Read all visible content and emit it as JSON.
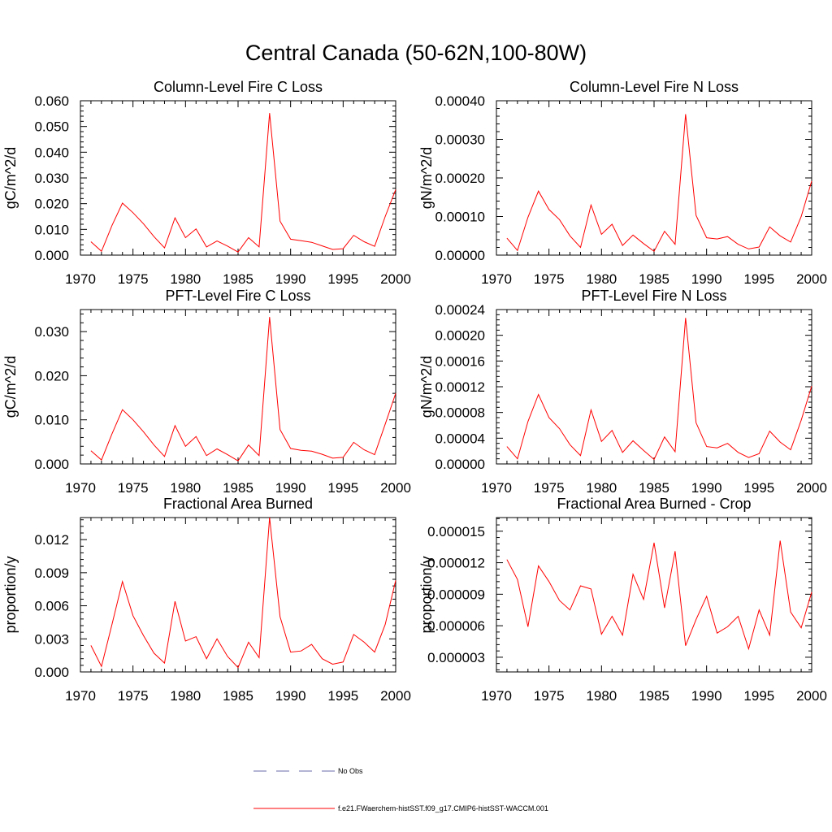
{
  "title": "Central Canada (50-62N,100-80W)",
  "legend": {
    "entries": [
      {
        "label": "No Obs",
        "color": "#6a6aa8",
        "dash": true
      },
      {
        "label": "f.e21.FWaerchem-histSST.f09_g17.CMIP6-histSST-WACCM.001",
        "color": "#ff0000",
        "dash": false
      }
    ]
  },
  "chart_data": [
    {
      "type": "line",
      "title": "Column-Level Fire C Loss",
      "ylabel": "gC/m^2/d",
      "xlim": [
        1970,
        2000
      ],
      "ylim": [
        0,
        0.06
      ],
      "xticks": [
        "1970",
        "1975",
        "1980",
        "1985",
        "1990",
        "1995",
        "2000"
      ],
      "yticks": [
        "0.000",
        "0.010",
        "0.020",
        "0.030",
        "0.040",
        "0.050",
        "0.060"
      ],
      "series": [
        {
          "color": "#ff0000",
          "x": [
            1971,
            1972,
            1973,
            1974,
            1975,
            1976,
            1977,
            1978,
            1979,
            1980,
            1981,
            1982,
            1983,
            1984,
            1985,
            1986,
            1987,
            1988,
            1989,
            1990,
            1991,
            1992,
            1993,
            1994,
            1995,
            1996,
            1997,
            1998,
            1999,
            2000
          ],
          "values": [
            0.0052,
            0.0015,
            0.0115,
            0.0202,
            0.0165,
            0.0122,
            0.0072,
            0.0028,
            0.0145,
            0.0068,
            0.0102,
            0.0032,
            0.0055,
            0.0035,
            0.0012,
            0.0068,
            0.0032,
            0.0552,
            0.0132,
            0.0062,
            0.0056,
            0.005,
            0.0036,
            0.0022,
            0.0025,
            0.0077,
            0.0052,
            0.0034,
            0.015,
            0.0255
          ]
        }
      ]
    },
    {
      "type": "line",
      "title": "Column-Level Fire N Loss",
      "ylabel": "gN/m^2/d",
      "xlim": [
        1970,
        2000
      ],
      "ylim": [
        0,
        0.0004
      ],
      "xticks": [
        "1970",
        "1975",
        "1980",
        "1985",
        "1990",
        "1995",
        "2000"
      ],
      "yticks": [
        "0.00000",
        "0.00010",
        "0.00020",
        "0.00030",
        "0.00040"
      ],
      "series": [
        {
          "color": "#ff0000",
          "x": [
            1971,
            1972,
            1973,
            1974,
            1975,
            1976,
            1977,
            1978,
            1979,
            1980,
            1981,
            1982,
            1983,
            1984,
            1985,
            1986,
            1987,
            1988,
            1989,
            1990,
            1991,
            1992,
            1993,
            1994,
            1995,
            1996,
            1997,
            1998,
            1999,
            2000
          ],
          "values": [
            4.4e-05,
            1.2e-05,
            9.8e-05,
            0.000166,
            0.000118,
            9.2e-05,
            5e-05,
            2e-05,
            0.00013,
            5.4e-05,
            8e-05,
            2.5e-05,
            5.2e-05,
            3e-05,
            1e-05,
            6.2e-05,
            2.8e-05,
            0.000365,
            0.000103,
            4.5e-05,
            4.2e-05,
            4.8e-05,
            2.8e-05,
            1.6e-05,
            2.1e-05,
            7.3e-05,
            5e-05,
            3.4e-05,
            0.0001,
            0.000192
          ]
        }
      ]
    },
    {
      "type": "line",
      "title": "PFT-Level Fire C Loss",
      "ylabel": "gC/m^2/d",
      "xlim": [
        1970,
        2000
      ],
      "ylim": [
        0,
        0.035
      ],
      "xticks": [
        "1970",
        "1975",
        "1980",
        "1985",
        "1990",
        "1995",
        "2000"
      ],
      "yticks": [
        "0.000",
        "0.010",
        "0.020",
        "0.030"
      ],
      "series": [
        {
          "color": "#ff0000",
          "x": [
            1971,
            1972,
            1973,
            1974,
            1975,
            1976,
            1977,
            1978,
            1979,
            1980,
            1981,
            1982,
            1983,
            1984,
            1985,
            1986,
            1987,
            1988,
            1989,
            1990,
            1991,
            1992,
            1993,
            1994,
            1995,
            1996,
            1997,
            1998,
            1999,
            2000
          ],
          "values": [
            0.003,
            0.0009,
            0.0068,
            0.0123,
            0.01,
            0.0073,
            0.0043,
            0.0017,
            0.0087,
            0.004,
            0.0062,
            0.0019,
            0.0034,
            0.0021,
            0.0007,
            0.0043,
            0.0019,
            0.0333,
            0.0078,
            0.0035,
            0.0031,
            0.0029,
            0.0022,
            0.0013,
            0.0015,
            0.0049,
            0.0032,
            0.0021,
            0.009,
            0.016
          ]
        }
      ]
    },
    {
      "type": "line",
      "title": "PFT-Level Fire N Loss",
      "ylabel": "gN/m^2/d",
      "xlim": [
        1970,
        2000
      ],
      "ylim": [
        0,
        0.00024
      ],
      "xticks": [
        "1970",
        "1975",
        "1980",
        "1985",
        "1990",
        "1995",
        "2000"
      ],
      "yticks": [
        "0.00000",
        "0.00004",
        "0.00008",
        "0.00012",
        "0.00016",
        "0.00020",
        "0.00024"
      ],
      "series": [
        {
          "color": "#ff0000",
          "x": [
            1971,
            1972,
            1973,
            1974,
            1975,
            1976,
            1977,
            1978,
            1979,
            1980,
            1981,
            1982,
            1983,
            1984,
            1985,
            1986,
            1987,
            1988,
            1989,
            1990,
            1991,
            1992,
            1993,
            1994,
            1995,
            1996,
            1997,
            1998,
            1999,
            2000
          ],
          "values": [
            2.7e-05,
            8e-06,
            6.6e-05,
            0.000108,
            7.2e-05,
            5.5e-05,
            3e-05,
            1.3e-05,
            8.4e-05,
            3.5e-05,
            5.2e-05,
            1.8e-05,
            3.6e-05,
            2.1e-05,
            7e-06,
            4.2e-05,
            1.9e-05,
            0.000227,
            6.4e-05,
            2.7e-05,
            2.5e-05,
            3.2e-05,
            1.8e-05,
            1e-05,
            1.6e-05,
            5.1e-05,
            3.4e-05,
            2.2e-05,
            6.8e-05,
            0.000121
          ]
        }
      ]
    },
    {
      "type": "line",
      "title": "Fractional Area Burned",
      "ylabel": "proportion/y",
      "xlim": [
        1970,
        2000
      ],
      "ylim": [
        0,
        0.014
      ],
      "xticks": [
        "1970",
        "1975",
        "1980",
        "1985",
        "1990",
        "1995",
        "2000"
      ],
      "yticks": [
        "0.000",
        "0.003",
        "0.006",
        "0.009",
        "0.012"
      ],
      "series": [
        {
          "color": "#ff0000",
          "x": [
            1971,
            1972,
            1973,
            1974,
            1975,
            1976,
            1977,
            1978,
            1979,
            1980,
            1981,
            1982,
            1983,
            1984,
            1985,
            1986,
            1987,
            1988,
            1989,
            1990,
            1991,
            1992,
            1993,
            1994,
            1995,
            1996,
            1997,
            1998,
            1999,
            2000
          ],
          "values": [
            0.0024,
            0.0005,
            0.0043,
            0.0082,
            0.0051,
            0.0033,
            0.0017,
            0.0008,
            0.0064,
            0.0028,
            0.0032,
            0.0012,
            0.003,
            0.0014,
            0.0004,
            0.0027,
            0.0013,
            0.014,
            0.005,
            0.0018,
            0.0019,
            0.0025,
            0.0012,
            0.0007,
            0.0009,
            0.0034,
            0.0027,
            0.0018,
            0.0043,
            0.0083
          ]
        }
      ]
    },
    {
      "type": "line",
      "title": "Fractional Area Burned - Crop",
      "ylabel": "proportion/y",
      "xlim": [
        1970,
        2000
      ],
      "ylim": [
        1.6e-06,
        1.63e-05
      ],
      "xticks": [
        "1970",
        "1975",
        "1980",
        "1985",
        "1990",
        "1995",
        "2000"
      ],
      "yticks": [
        "0.000003",
        "0.000006",
        "0.000009",
        "0.000012",
        "0.000015"
      ],
      "yticks_values": [
        3e-06,
        6e-06,
        9e-06,
        1.2e-05,
        1.5e-05
      ],
      "series": [
        {
          "color": "#ff0000",
          "x": [
            1971,
            1972,
            1973,
            1974,
            1975,
            1976,
            1977,
            1978,
            1979,
            1980,
            1981,
            1982,
            1983,
            1984,
            1985,
            1986,
            1987,
            1988,
            1989,
            1990,
            1991,
            1992,
            1993,
            1994,
            1995,
            1996,
            1997,
            1998,
            1999,
            2000
          ],
          "values": [
            1.23e-05,
            1.04e-05,
            5.9e-06,
            1.17e-05,
            1.02e-05,
            8.4e-06,
            7.5e-06,
            9.8e-06,
            9.5e-06,
            5.2e-06,
            6.9e-06,
            5.1e-06,
            1.09e-05,
            8.5e-06,
            1.39e-05,
            7.7e-06,
            1.31e-05,
            4.1e-06,
            6.6e-06,
            8.8e-06,
            5.3e-06,
            5.9e-06,
            6.9e-06,
            3.8e-06,
            7.5e-06,
            5.1e-06,
            1.41e-05,
            7.3e-06,
            5.8e-06,
            9.2e-06
          ]
        }
      ]
    }
  ]
}
